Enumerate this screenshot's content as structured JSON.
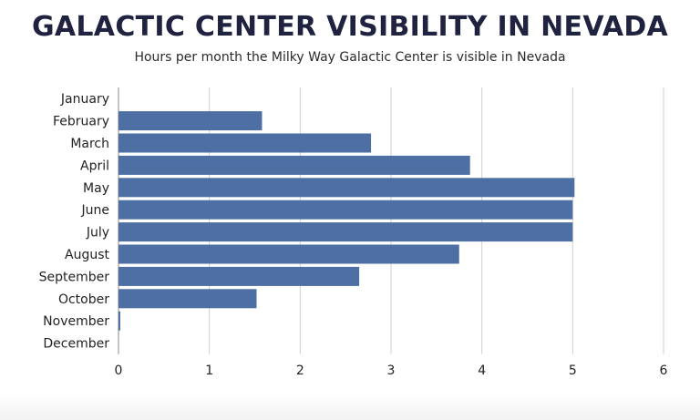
{
  "chart_data": {
    "type": "bar",
    "orientation": "horizontal",
    "title": "GALACTIC CENTER VISIBILITY IN NEVADA",
    "subtitle": "Hours per month the Milky Way Galactic Center is visible in Nevada",
    "categories": [
      "January",
      "February",
      "March",
      "April",
      "May",
      "June",
      "July",
      "August",
      "September",
      "October",
      "November",
      "December"
    ],
    "values": [
      0,
      1.58,
      2.78,
      3.87,
      5.02,
      5.0,
      5.0,
      3.75,
      2.65,
      1.52,
      0.02,
      0
    ],
    "xlabel": "",
    "ylabel": "",
    "xlim": [
      0,
      6
    ],
    "xticks": [
      0,
      1,
      2,
      3,
      4,
      5,
      6
    ],
    "grid": "vertical",
    "bar_color": "#4d6fa3"
  }
}
